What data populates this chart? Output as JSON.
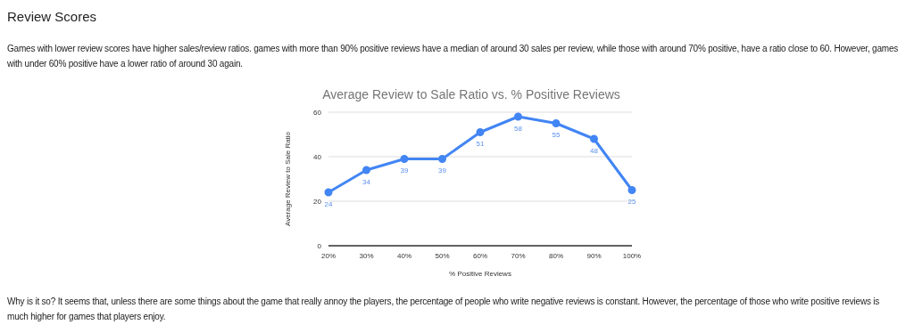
{
  "chart_data": {
    "type": "line",
    "title": "Average Review to Sale Ratio vs. % Positive Reviews",
    "xlabel": "% Positive Reviews",
    "ylabel": "Average Review to Sale Ratio",
    "annotations": [
      "Review Scores",
      "Games with lower review scores have higher sales/review ratios. games with more than 90% positive reviews have a median of around 30 sales per review, while those with around 70% positive, have a ratio close to 60. However, games with under 60% positive have a lower ratio of around 30 again.",
      "Why is it so? It seems that, unless there are some things about the game that really annoy the players, the percentage of people who write negative reviews is constant. However, the percentage of those who write positive reviews is much higher for games that players enjoy."
    ],
    "categories": [
      "20%",
      "30%",
      "40%",
      "50%",
      "60%",
      "70%",
      "80%",
      "90%",
      "100%"
    ],
    "series": [
      {
        "color": "#4285f4",
        "values": [
          24,
          34,
          39,
          39,
          51,
          58,
          55,
          48,
          25
        ]
      }
    ],
    "ylim": [
      0,
      60
    ],
    "yticks": [
      0,
      20,
      40,
      60
    ],
    "grid": "y",
    "marker": "circle",
    "data_labels": true
  }
}
